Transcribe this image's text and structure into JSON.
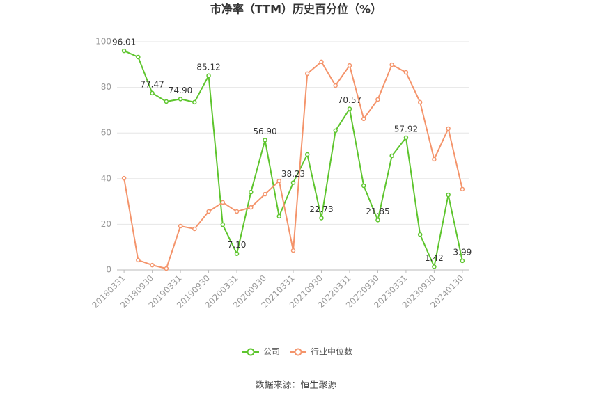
{
  "chart_data": {
    "type": "line",
    "title": "市净率（TTM）历史百分位（%）",
    "source": "数据来源：恒生聚源",
    "categories": [
      "20180331",
      null,
      "20180930",
      null,
      "20190331",
      null,
      "20190930",
      null,
      "20200331",
      null,
      "20200930",
      null,
      "20210331",
      null,
      "20210930",
      null,
      "20220331",
      null,
      "20220930",
      null,
      "20230331",
      null,
      "20230930",
      null,
      "20240130"
    ],
    "series": [
      {
        "name": "公司",
        "color": "#5ec52e",
        "values": [
          96.01,
          93.3,
          77.47,
          73.8,
          74.9,
          73.5,
          85.12,
          19.8,
          7.1,
          34.1,
          56.9,
          23.5,
          38.23,
          50.6,
          22.73,
          61.0,
          70.57,
          36.9,
          21.85,
          50.0,
          57.92,
          15.5,
          1.42,
          32.9,
          3.99
        ],
        "value_labels": [
          "96.01",
          null,
          "77.47",
          null,
          "74.90",
          null,
          "85.12",
          null,
          "7.10",
          null,
          "56.90",
          null,
          "38.23",
          null,
          "22.73",
          null,
          "70.57",
          null,
          "21.85",
          null,
          "57.92",
          null,
          "1.42",
          null,
          "3.99"
        ]
      },
      {
        "name": "行业中位数",
        "color": "#f4946b",
        "values": [
          40.2,
          4.3,
          2.1,
          0.6,
          19.2,
          18.0,
          25.6,
          29.6,
          25.6,
          27.4,
          33.2,
          39.0,
          8.5,
          86.0,
          91.2,
          80.8,
          89.6,
          66.2,
          74.7,
          89.9,
          86.6,
          73.5,
          48.5,
          61.9,
          35.4
        ]
      }
    ],
    "ylim": [
      0,
      100
    ],
    "yticks": [
      0,
      20,
      40,
      60,
      80,
      100
    ],
    "grid": true
  }
}
